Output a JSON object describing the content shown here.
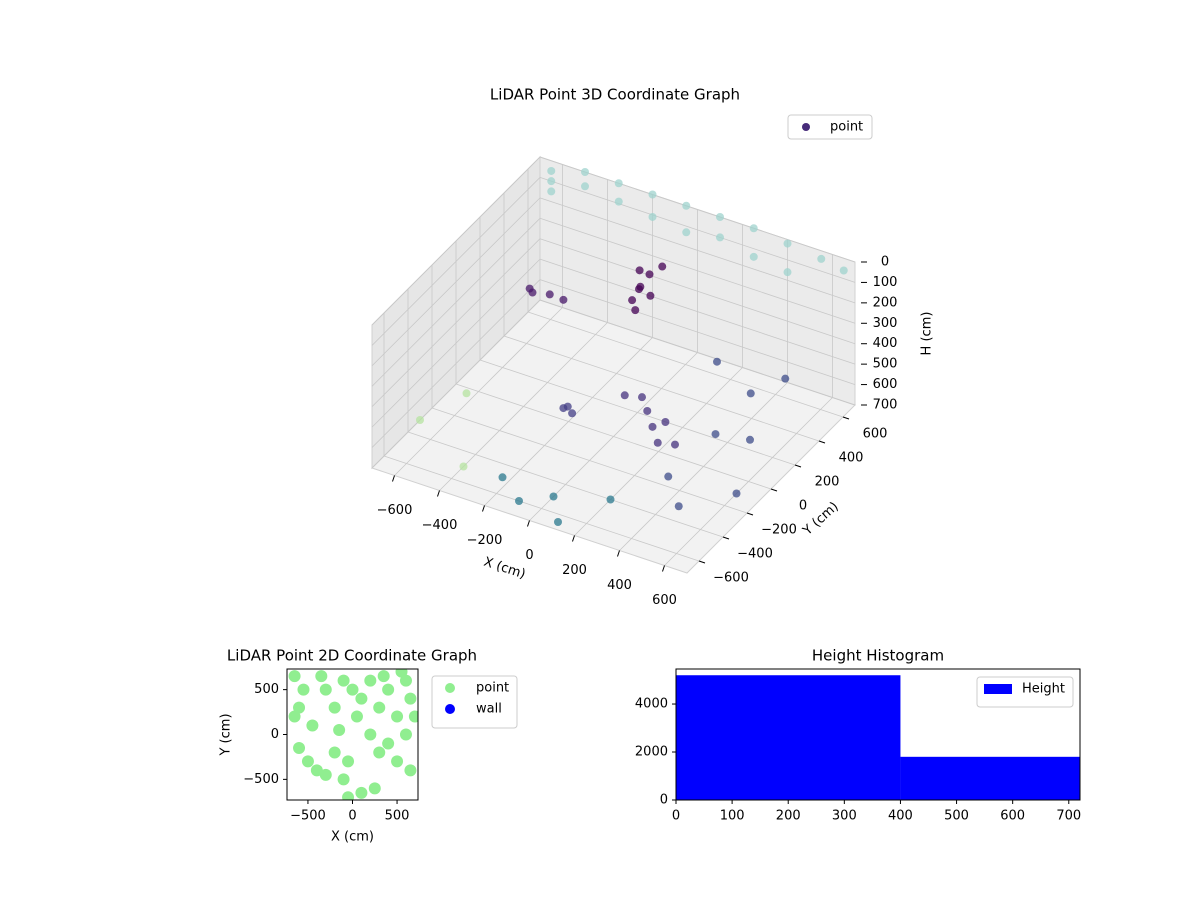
{
  "chart_data": [
    {
      "type": "scatter3d",
      "title": "LiDAR Point 3D Coordinate Graph",
      "xlabel": "X (cm)",
      "ylabel": "Y (cm)",
      "zlabel": "H (cm)",
      "xlim": [
        -700,
        700
      ],
      "ylim": [
        -700,
        700
      ],
      "zlim": [
        0,
        700
      ],
      "z_inverted": true,
      "xticks": [
        {
          "value": -600,
          "label": "−600"
        },
        {
          "value": -400,
          "label": "−400"
        },
        {
          "value": -200,
          "label": "−200"
        },
        0,
        200,
        400,
        600
      ],
      "yticks": [
        {
          "value": -600,
          "label": "−600"
        },
        {
          "value": -400,
          "label": "−400"
        },
        {
          "value": -200,
          "label": "−200"
        },
        0,
        200,
        400,
        600
      ],
      "zticks": [
        0,
        100,
        200,
        300,
        400,
        500,
        600,
        700
      ],
      "grid": true,
      "legend": "upper right",
      "series": [
        {
          "name": "point",
          "color": "#472c7a",
          "x": [
            -650,
            -650,
            -650,
            -500,
            -500,
            -350,
            -350,
            -200,
            -200,
            -50,
            -50,
            100,
            100,
            250,
            250,
            400,
            400,
            550,
            650,
            -700,
            -600,
            -400,
            -100,
            -80,
            -120,
            -60,
            -140,
            -90,
            -50,
            -110,
            -550,
            -600,
            -500,
            -650,
            200,
            150,
            250,
            100,
            300,
            50,
            220,
            -150,
            -180,
            -120,
            400,
            450,
            500,
            350,
            550,
            600,
            450,
            300,
            0,
            -100,
            100,
            -200,
            200
          ],
          "y": [
            700,
            700,
            700,
            700,
            700,
            700,
            700,
            700,
            700,
            700,
            700,
            700,
            700,
            700,
            700,
            700,
            700,
            700,
            700,
            -300,
            -100,
            -500,
            400,
            450,
            380,
            420,
            480,
            350,
            500,
            430,
            500,
            450,
            520,
            520,
            -50,
            0,
            -100,
            50,
            -50,
            0,
            20,
            -100,
            -80,
            -120,
            100,
            300,
            200,
            -200,
            400,
            -100,
            -300,
            300,
            -500,
            -600,
            -650,
            -550,
            -400
          ],
          "z": [
            50,
            100,
            150,
            0,
            70,
            0,
            90,
            0,
            110,
            0,
            130,
            0,
            100,
            0,
            140,
            20,
            160,
            40,
            60,
            700,
            650,
            700,
            250,
            200,
            300,
            280,
            220,
            320,
            180,
            260,
            500,
            480,
            520,
            520,
            550,
            520,
            580,
            500,
            600,
            480,
            560,
            550,
            580,
            560,
            600,
            500,
            650,
            650,
            450,
            700,
            700,
            400,
            700,
            700,
            700,
            650,
            700
          ],
          "colors": [
            "#9fd3ce",
            "#9fd3ce",
            "#9fd3ce",
            "#9fd3ce",
            "#9fd3ce",
            "#9fd3ce",
            "#9fd3ce",
            "#9fd3ce",
            "#9fd3ce",
            "#9fd3ce",
            "#9fd3ce",
            "#9fd3ce",
            "#9fd3ce",
            "#9fd3ce",
            "#9fd3ce",
            "#9fd3ce",
            "#9fd3ce",
            "#9fd3ce",
            "#9fd3ce",
            "#b5e3a0",
            "#b5e3a0",
            "#b5e3a0",
            "#440154",
            "#440154",
            "#440154",
            "#440154",
            "#440154",
            "#440154",
            "#440154",
            "#440154",
            "#48186a",
            "#48186a",
            "#48186a",
            "#48186a",
            "#46327e",
            "#46327e",
            "#46327e",
            "#46327e",
            "#46327e",
            "#46327e",
            "#46327e",
            "#433e85",
            "#433e85",
            "#433e85",
            "#3e4c8a",
            "#3e4c8a",
            "#3e4c8a",
            "#3e4c8a",
            "#3e4c8a",
            "#3e4c8a",
            "#3e4c8a",
            "#3e4c8a",
            "#2a788e",
            "#2a788e",
            "#2a788e",
            "#2a788e",
            "#2a788e"
          ]
        }
      ]
    },
    {
      "type": "scatter",
      "title": "LiDAR Point 2D Coordinate Graph",
      "xlabel": "X (cm)",
      "ylabel": "Y (cm)",
      "xlim": [
        -735,
        735
      ],
      "ylim": [
        -730,
        730
      ],
      "xticks": [
        {
          "value": -500,
          "label": "−500"
        },
        0,
        500
      ],
      "yticks": [
        {
          "value": -500,
          "label": "−500"
        },
        0,
        500
      ],
      "legend": "outside right",
      "series": [
        {
          "name": "point",
          "color": "#90ee90",
          "x": [
            -650,
            -600,
            -650,
            -550,
            -450,
            -500,
            -600,
            -400,
            -300,
            -200,
            -100,
            -50,
            100,
            250,
            300,
            400,
            500,
            650,
            600,
            700,
            500,
            300,
            100,
            0,
            -100,
            200,
            400,
            600,
            650,
            -200,
            -300,
            -350,
            50,
            200,
            -150,
            350,
            550,
            -50
          ],
          "y": [
            650,
            300,
            200,
            500,
            100,
            -300,
            -150,
            -400,
            -450,
            -200,
            -500,
            -700,
            -650,
            -600,
            -200,
            -100,
            -300,
            -400,
            0,
            200,
            200,
            300,
            400,
            500,
            600,
            600,
            500,
            600,
            400,
            300,
            500,
            650,
            200,
            0,
            50,
            650,
            700,
            -300
          ]
        },
        {
          "name": "wall",
          "color": "#0000ff",
          "x": [],
          "y": []
        }
      ]
    },
    {
      "type": "histogram",
      "title": "Height Histogram",
      "bins": [
        0,
        400,
        720
      ],
      "xlim": [
        0,
        720
      ],
      "ylim": [
        0,
        5460
      ],
      "xticks": [
        0,
        100,
        200,
        300,
        400,
        500,
        600,
        700
      ],
      "yticks": [
        0,
        2000,
        4000
      ],
      "legend": "upper right",
      "series": [
        {
          "name": "Height",
          "color": "#0000ff",
          "values": [
            5200,
            1800
          ]
        }
      ]
    }
  ]
}
